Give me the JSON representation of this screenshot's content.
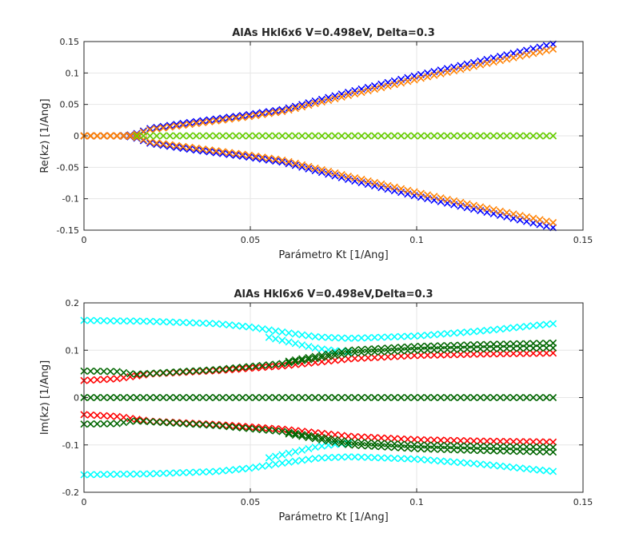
{
  "chart_data": [
    {
      "type": "scatter",
      "title": "AlAs Hkl6x6 V=0.498eV, Delta=0.3",
      "xlabel": "Parámetro Kt [1/Ang]",
      "ylabel": "Re(kz) [1/Ang]",
      "xlim": [
        0,
        0.15
      ],
      "ylim": [
        -0.15,
        0.15
      ],
      "xticks": [
        0,
        0.05,
        0.1,
        0.15
      ],
      "xtick_labels": [
        "0",
        "0.05",
        "0.1",
        "0.15"
      ],
      "yticks": [
        -0.15,
        -0.1,
        -0.05,
        0,
        0.05,
        0.1,
        0.15
      ],
      "ytick_labels": [
        "-0.15",
        "-0.1",
        "-0.05",
        "0",
        "0.05",
        "0.1",
        "0.15"
      ],
      "grid": true,
      "x_range": [
        0,
        0.141
      ],
      "n_points": 72,
      "series": [
        {
          "name": "band-blue-upper",
          "color": "#0000ff",
          "marker": "x",
          "x": [
            0,
            0.005,
            0.01,
            0.015,
            0.02,
            0.03,
            0.04,
            0.05,
            0.06,
            0.07,
            0.08,
            0.1,
            0.12,
            0.141
          ],
          "y": [
            0,
            0,
            0,
            0.002,
            0.012,
            0.02,
            0.027,
            0.034,
            0.042,
            0.056,
            0.07,
            0.096,
            0.12,
            0.146
          ]
        },
        {
          "name": "band-blue-lower",
          "color": "#0000ff",
          "marker": "x",
          "x": [
            0,
            0.005,
            0.01,
            0.015,
            0.02,
            0.03,
            0.04,
            0.05,
            0.06,
            0.07,
            0.08,
            0.1,
            0.12,
            0.141
          ],
          "y": [
            0,
            0,
            0,
            -0.002,
            -0.012,
            -0.02,
            -0.027,
            -0.034,
            -0.042,
            -0.056,
            -0.07,
            -0.096,
            -0.12,
            -0.146
          ]
        },
        {
          "name": "band-orange-upper",
          "color": "#ff8000",
          "marker": "x",
          "x": [
            0,
            0.005,
            0.01,
            0.015,
            0.02,
            0.03,
            0.04,
            0.05,
            0.06,
            0.07,
            0.08,
            0.1,
            0.12,
            0.141
          ],
          "y": [
            0,
            0,
            0,
            0.001,
            0.01,
            0.017,
            0.024,
            0.031,
            0.039,
            0.052,
            0.065,
            0.09,
            0.114,
            0.138
          ]
        },
        {
          "name": "band-orange-lower",
          "color": "#ff8000",
          "marker": "x",
          "x": [
            0,
            0.005,
            0.01,
            0.015,
            0.02,
            0.03,
            0.04,
            0.05,
            0.06,
            0.07,
            0.08,
            0.1,
            0.12,
            0.141
          ],
          "y": [
            0,
            0,
            0,
            -0.001,
            -0.01,
            -0.017,
            -0.024,
            -0.031,
            -0.039,
            -0.052,
            -0.065,
            -0.09,
            -0.114,
            -0.138
          ]
        },
        {
          "name": "band-green-zero",
          "color": "#66cc00",
          "marker": "x",
          "x": [
            0.015,
            0.141
          ],
          "y": [
            0,
            0
          ]
        },
        {
          "name": "band-orange-zero",
          "color": "#ff8000",
          "marker": "x",
          "x": [
            0,
            0.015
          ],
          "y": [
            0,
            0
          ]
        }
      ]
    },
    {
      "type": "scatter",
      "title": "AlAs Hkl6x6 V=0.498eV,Delta=0.3",
      "xlabel": "Parámetro Kt [1/Ang]",
      "ylabel": "Im(kz) [1/Ang]",
      "xlim": [
        0,
        0.15
      ],
      "ylim": [
        -0.2,
        0.2
      ],
      "xticks": [
        0,
        0.05,
        0.1,
        0.15
      ],
      "xtick_labels": [
        "0",
        "0.05",
        "0.1",
        "0.15"
      ],
      "yticks": [
        -0.2,
        -0.1,
        0,
        0.1,
        0.2
      ],
      "ytick_labels": [
        "-0.2",
        "-0.1",
        "0",
        "0.1",
        "0.2"
      ],
      "grid": true,
      "x_range": [
        0,
        0.141
      ],
      "n_points": 72,
      "series": [
        {
          "name": "cyan-outer-upper",
          "color": "#00ffff",
          "marker": "x",
          "x": [
            0,
            0.02,
            0.04,
            0.05,
            0.06,
            0.07,
            0.08,
            0.1,
            0.12,
            0.141
          ],
          "y": [
            0.163,
            0.161,
            0.156,
            0.149,
            0.138,
            0.128,
            0.125,
            0.13,
            0.141,
            0.156
          ]
        },
        {
          "name": "cyan-outer-lower",
          "color": "#00ffff",
          "marker": "x",
          "x": [
            0,
            0.02,
            0.04,
            0.05,
            0.06,
            0.07,
            0.08,
            0.1,
            0.12,
            0.141
          ],
          "y": [
            -0.163,
            -0.161,
            -0.156,
            -0.149,
            -0.138,
            -0.128,
            -0.125,
            -0.13,
            -0.141,
            -0.156
          ]
        },
        {
          "name": "cyan-inner-upper",
          "color": "#00ffff",
          "marker": "x",
          "x": [
            0.055,
            0.06,
            0.065,
            0.07,
            0.075,
            0.08
          ],
          "y": [
            0.128,
            0.12,
            0.112,
            0.104,
            0.099,
            0.097
          ]
        },
        {
          "name": "cyan-inner-lower",
          "color": "#00ffff",
          "marker": "x",
          "x": [
            0.055,
            0.06,
            0.065,
            0.07,
            0.075,
            0.08
          ],
          "y": [
            -0.128,
            -0.12,
            -0.112,
            -0.104,
            -0.099,
            -0.097
          ]
        },
        {
          "name": "red-upper",
          "color": "#ff0000",
          "marker": "x",
          "x": [
            0,
            0.01,
            0.015,
            0.02,
            0.04,
            0.06,
            0.08,
            0.1,
            0.12,
            0.141
          ],
          "y": [
            0.036,
            0.04,
            0.045,
            0.05,
            0.057,
            0.067,
            0.082,
            0.089,
            0.092,
            0.094
          ]
        },
        {
          "name": "red-lower",
          "color": "#ff0000",
          "marker": "x",
          "x": [
            0,
            0.01,
            0.015,
            0.02,
            0.04,
            0.06,
            0.08,
            0.1,
            0.12,
            0.141
          ],
          "y": [
            -0.036,
            -0.04,
            -0.045,
            -0.05,
            -0.057,
            -0.067,
            -0.082,
            -0.089,
            -0.092,
            -0.094
          ]
        },
        {
          "name": "green-upper-a",
          "color": "#006600",
          "marker": "x",
          "x": [
            0,
            0.01,
            0.015,
            0.02,
            0.04,
            0.06,
            0.08,
            0.1,
            0.12,
            0.141
          ],
          "y": [
            0.056,
            0.055,
            0.049,
            0.051,
            0.059,
            0.072,
            0.094,
            0.1,
            0.103,
            0.105
          ]
        },
        {
          "name": "green-upper-b",
          "color": "#006600",
          "marker": "x",
          "x": [
            0.06,
            0.08,
            0.1,
            0.12,
            0.141
          ],
          "y": [
            0.075,
            0.1,
            0.108,
            0.112,
            0.115
          ]
        },
        {
          "name": "green-lower-a",
          "color": "#006600",
          "marker": "x",
          "x": [
            0,
            0.01,
            0.015,
            0.02,
            0.04,
            0.06,
            0.08,
            0.1,
            0.12,
            0.141
          ],
          "y": [
            -0.056,
            -0.055,
            -0.049,
            -0.051,
            -0.059,
            -0.072,
            -0.094,
            -0.1,
            -0.103,
            -0.105
          ]
        },
        {
          "name": "green-lower-b",
          "color": "#006600",
          "marker": "x",
          "x": [
            0.06,
            0.08,
            0.1,
            0.12,
            0.141
          ],
          "y": [
            -0.075,
            -0.1,
            -0.108,
            -0.112,
            -0.115
          ]
        },
        {
          "name": "green-zero",
          "color": "#006600",
          "marker": "x",
          "x": [
            0,
            0.141
          ],
          "y": [
            0,
            0
          ]
        }
      ]
    }
  ]
}
